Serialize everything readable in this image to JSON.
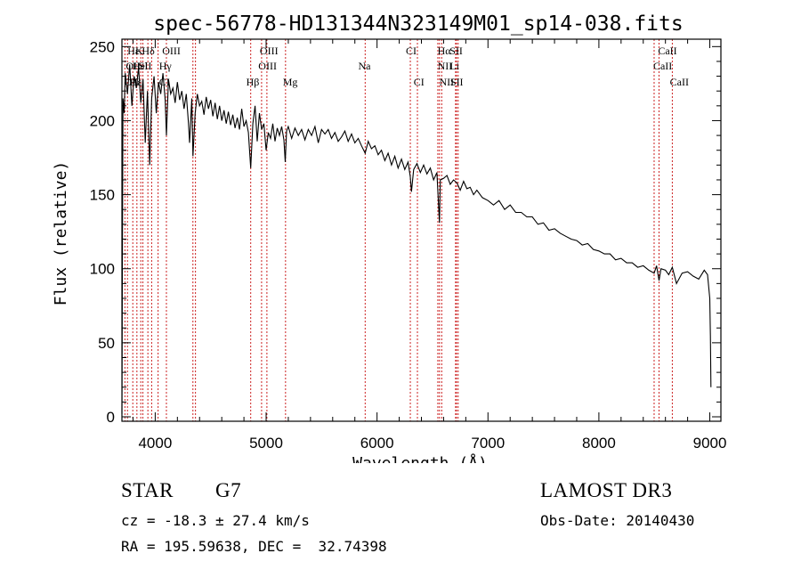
{
  "chart_data": {
    "type": "line",
    "title": "spec-56778-HD131344N323149M01_sp14-038.fits",
    "xlabel": "Wavelength (Å)",
    "ylabel": "Flux (relative)",
    "xlim": [
      3700,
      9100
    ],
    "ylim": [
      -3,
      255
    ],
    "xticks": [
      4000,
      5000,
      6000,
      7000,
      8000,
      9000
    ],
    "yticks": [
      0,
      50,
      100,
      150,
      200,
      250
    ],
    "series": [
      {
        "name": "spectrum",
        "x": [
          3700,
          3705,
          3710,
          3720,
          3730,
          3750,
          3770,
          3790,
          3810,
          3830,
          3850,
          3870,
          3890,
          3910,
          3930,
          3950,
          3968,
          3990,
          4010,
          4030,
          4050,
          4070,
          4090,
          4101,
          4120,
          4140,
          4160,
          4180,
          4200,
          4220,
          4240,
          4260,
          4280,
          4300,
          4310,
          4330,
          4340,
          4360,
          4380,
          4400,
          4420,
          4440,
          4460,
          4480,
          4500,
          4520,
          4540,
          4560,
          4580,
          4600,
          4620,
          4640,
          4660,
          4680,
          4700,
          4720,
          4740,
          4760,
          4780,
          4800,
          4820,
          4840,
          4861,
          4880,
          4900,
          4920,
          4940,
          4960,
          4980,
          5000,
          5020,
          5040,
          5060,
          5080,
          5100,
          5120,
          5140,
          5160,
          5172,
          5184,
          5200,
          5230,
          5260,
          5290,
          5320,
          5350,
          5380,
          5410,
          5440,
          5470,
          5500,
          5530,
          5560,
          5590,
          5620,
          5650,
          5680,
          5710,
          5740,
          5770,
          5800,
          5830,
          5860,
          5893,
          5920,
          5950,
          5980,
          6010,
          6040,
          6070,
          6100,
          6130,
          6160,
          6190,
          6220,
          6250,
          6280,
          6300,
          6310,
          6330,
          6360,
          6390,
          6420,
          6450,
          6480,
          6510,
          6540,
          6563,
          6570,
          6600,
          6630,
          6660,
          6690,
          6720,
          6750,
          6780,
          6810,
          6840,
          6870,
          6900,
          6950,
          7000,
          7050,
          7100,
          7150,
          7200,
          7250,
          7300,
          7350,
          7400,
          7450,
          7500,
          7550,
          7600,
          7650,
          7700,
          7750,
          7800,
          7850,
          7900,
          7950,
          8000,
          8050,
          8100,
          8150,
          8200,
          8250,
          8300,
          8350,
          8400,
          8450,
          8498,
          8520,
          8542,
          8560,
          8600,
          8630,
          8662,
          8700,
          8750,
          8800,
          8850,
          8900,
          8950,
          8980,
          9000,
          9005,
          9010
        ],
        "values": [
          2,
          120,
          215,
          205,
          232,
          218,
          238,
          210,
          230,
          222,
          236,
          212,
          228,
          185,
          220,
          170,
          215,
          230,
          205,
          226,
          218,
          232,
          214,
          190,
          228,
          218,
          222,
          212,
          226,
          214,
          220,
          208,
          218,
          198,
          185,
          215,
          176,
          205,
          218,
          210,
          213,
          204,
          216,
          208,
          214,
          203,
          212,
          201,
          210,
          200,
          207,
          198,
          206,
          197,
          204,
          195,
          202,
          194,
          208,
          196,
          200,
          192,
          168,
          198,
          210,
          186,
          205,
          194,
          198,
          180,
          192,
          188,
          198,
          186,
          195,
          190,
          196,
          187,
          172,
          193,
          196,
          188,
          195,
          190,
          194,
          187,
          194,
          190,
          196,
          185,
          194,
          191,
          194,
          188,
          192,
          186,
          189,
          193,
          186,
          191,
          185,
          188,
          183,
          178,
          186,
          181,
          183,
          177,
          180,
          173,
          178,
          170,
          176,
          168,
          174,
          167,
          172,
          162,
          152,
          167,
          171,
          165,
          170,
          164,
          168,
          160,
          165,
          131,
          160,
          161,
          163,
          157,
          160,
          158,
          153,
          159,
          154,
          155,
          150,
          153,
          148,
          146,
          143,
          146,
          140,
          143,
          138,
          138,
          135,
          135,
          130,
          131,
          126,
          127,
          124,
          122,
          120,
          119,
          116,
          117,
          113,
          112,
          110,
          110,
          106,
          107,
          104,
          104,
          101,
          102,
          99,
          97,
          102,
          92,
          100,
          99,
          96,
          101,
          90,
          97,
          98,
          95,
          93,
          99,
          96,
          80,
          55,
          20
        ]
      }
    ],
    "spectral_lines": [
      {
        "label": "Hε",
        "x": 3750,
        "row": 0
      },
      {
        "label": "K",
        "x": 3820,
        "row": 0
      },
      {
        "label": "Hδ",
        "x": 3880,
        "row": 0
      },
      {
        "label": "OIII",
        "x": 4063,
        "row": 0
      },
      {
        "label": "OIII",
        "x": 4943,
        "row": 0
      },
      {
        "label": "CI",
        "x": 6260,
        "row": 0
      },
      {
        "label": "Hα",
        "x": 6545,
        "row": 0
      },
      {
        "label": "SII",
        "x": 6655,
        "row": 0
      },
      {
        "label": "CaII",
        "x": 8533,
        "row": 0
      },
      {
        "label": "OII",
        "x": 3735,
        "row": 1
      },
      {
        "label": "Hel",
        "x": 3795,
        "row": 1
      },
      {
        "label": "SII",
        "x": 3850,
        "row": 1
      },
      {
        "label": "Hγ",
        "x": 4035,
        "row": 1
      },
      {
        "label": "OIII",
        "x": 4930,
        "row": 1
      },
      {
        "label": "Na",
        "x": 5830,
        "row": 1
      },
      {
        "label": "NII",
        "x": 6545,
        "row": 1
      },
      {
        "label": "Li",
        "x": 6655,
        "row": 1
      },
      {
        "label": "CaII",
        "x": 8490,
        "row": 1
      },
      {
        "label": "OII",
        "x": 3720,
        "row": 2
      },
      {
        "label": "Hε",
        "x": 3770,
        "row": 2
      },
      {
        "label": "CI",
        "x": 4035,
        "row": 2
      },
      {
        "label": "Hβ",
        "x": 4820,
        "row": 2
      },
      {
        "label": "Mg",
        "x": 5150,
        "row": 2
      },
      {
        "label": "CI",
        "x": 6330,
        "row": 2
      },
      {
        "label": "NII",
        "x": 6560,
        "row": 2
      },
      {
        "label": "SII",
        "x": 6660,
        "row": 2
      },
      {
        "label": "CaII",
        "x": 8640,
        "row": 2
      }
    ],
    "line_markers": [
      3727,
      3750,
      3798,
      3835,
      3870,
      3889,
      3934,
      3968,
      4026,
      4101,
      4340,
      4363,
      4861,
      4959,
      5007,
      5175,
      5893,
      6300,
      6364,
      6548,
      6563,
      6583,
      6708,
      6716,
      6731,
      8498,
      8542,
      8662
    ]
  },
  "info": {
    "object_class": "STAR",
    "subclass": "G7",
    "survey": "LAMOST DR3",
    "redshift": "cz = -18.3 ± 27.4 km/s",
    "obs_date": "Obs-Date: 20140430",
    "coords": "RA = 195.59638, DEC =  32.74398"
  },
  "colors": {
    "line_marker": "#cc2222",
    "spectrum": "#000000"
  }
}
